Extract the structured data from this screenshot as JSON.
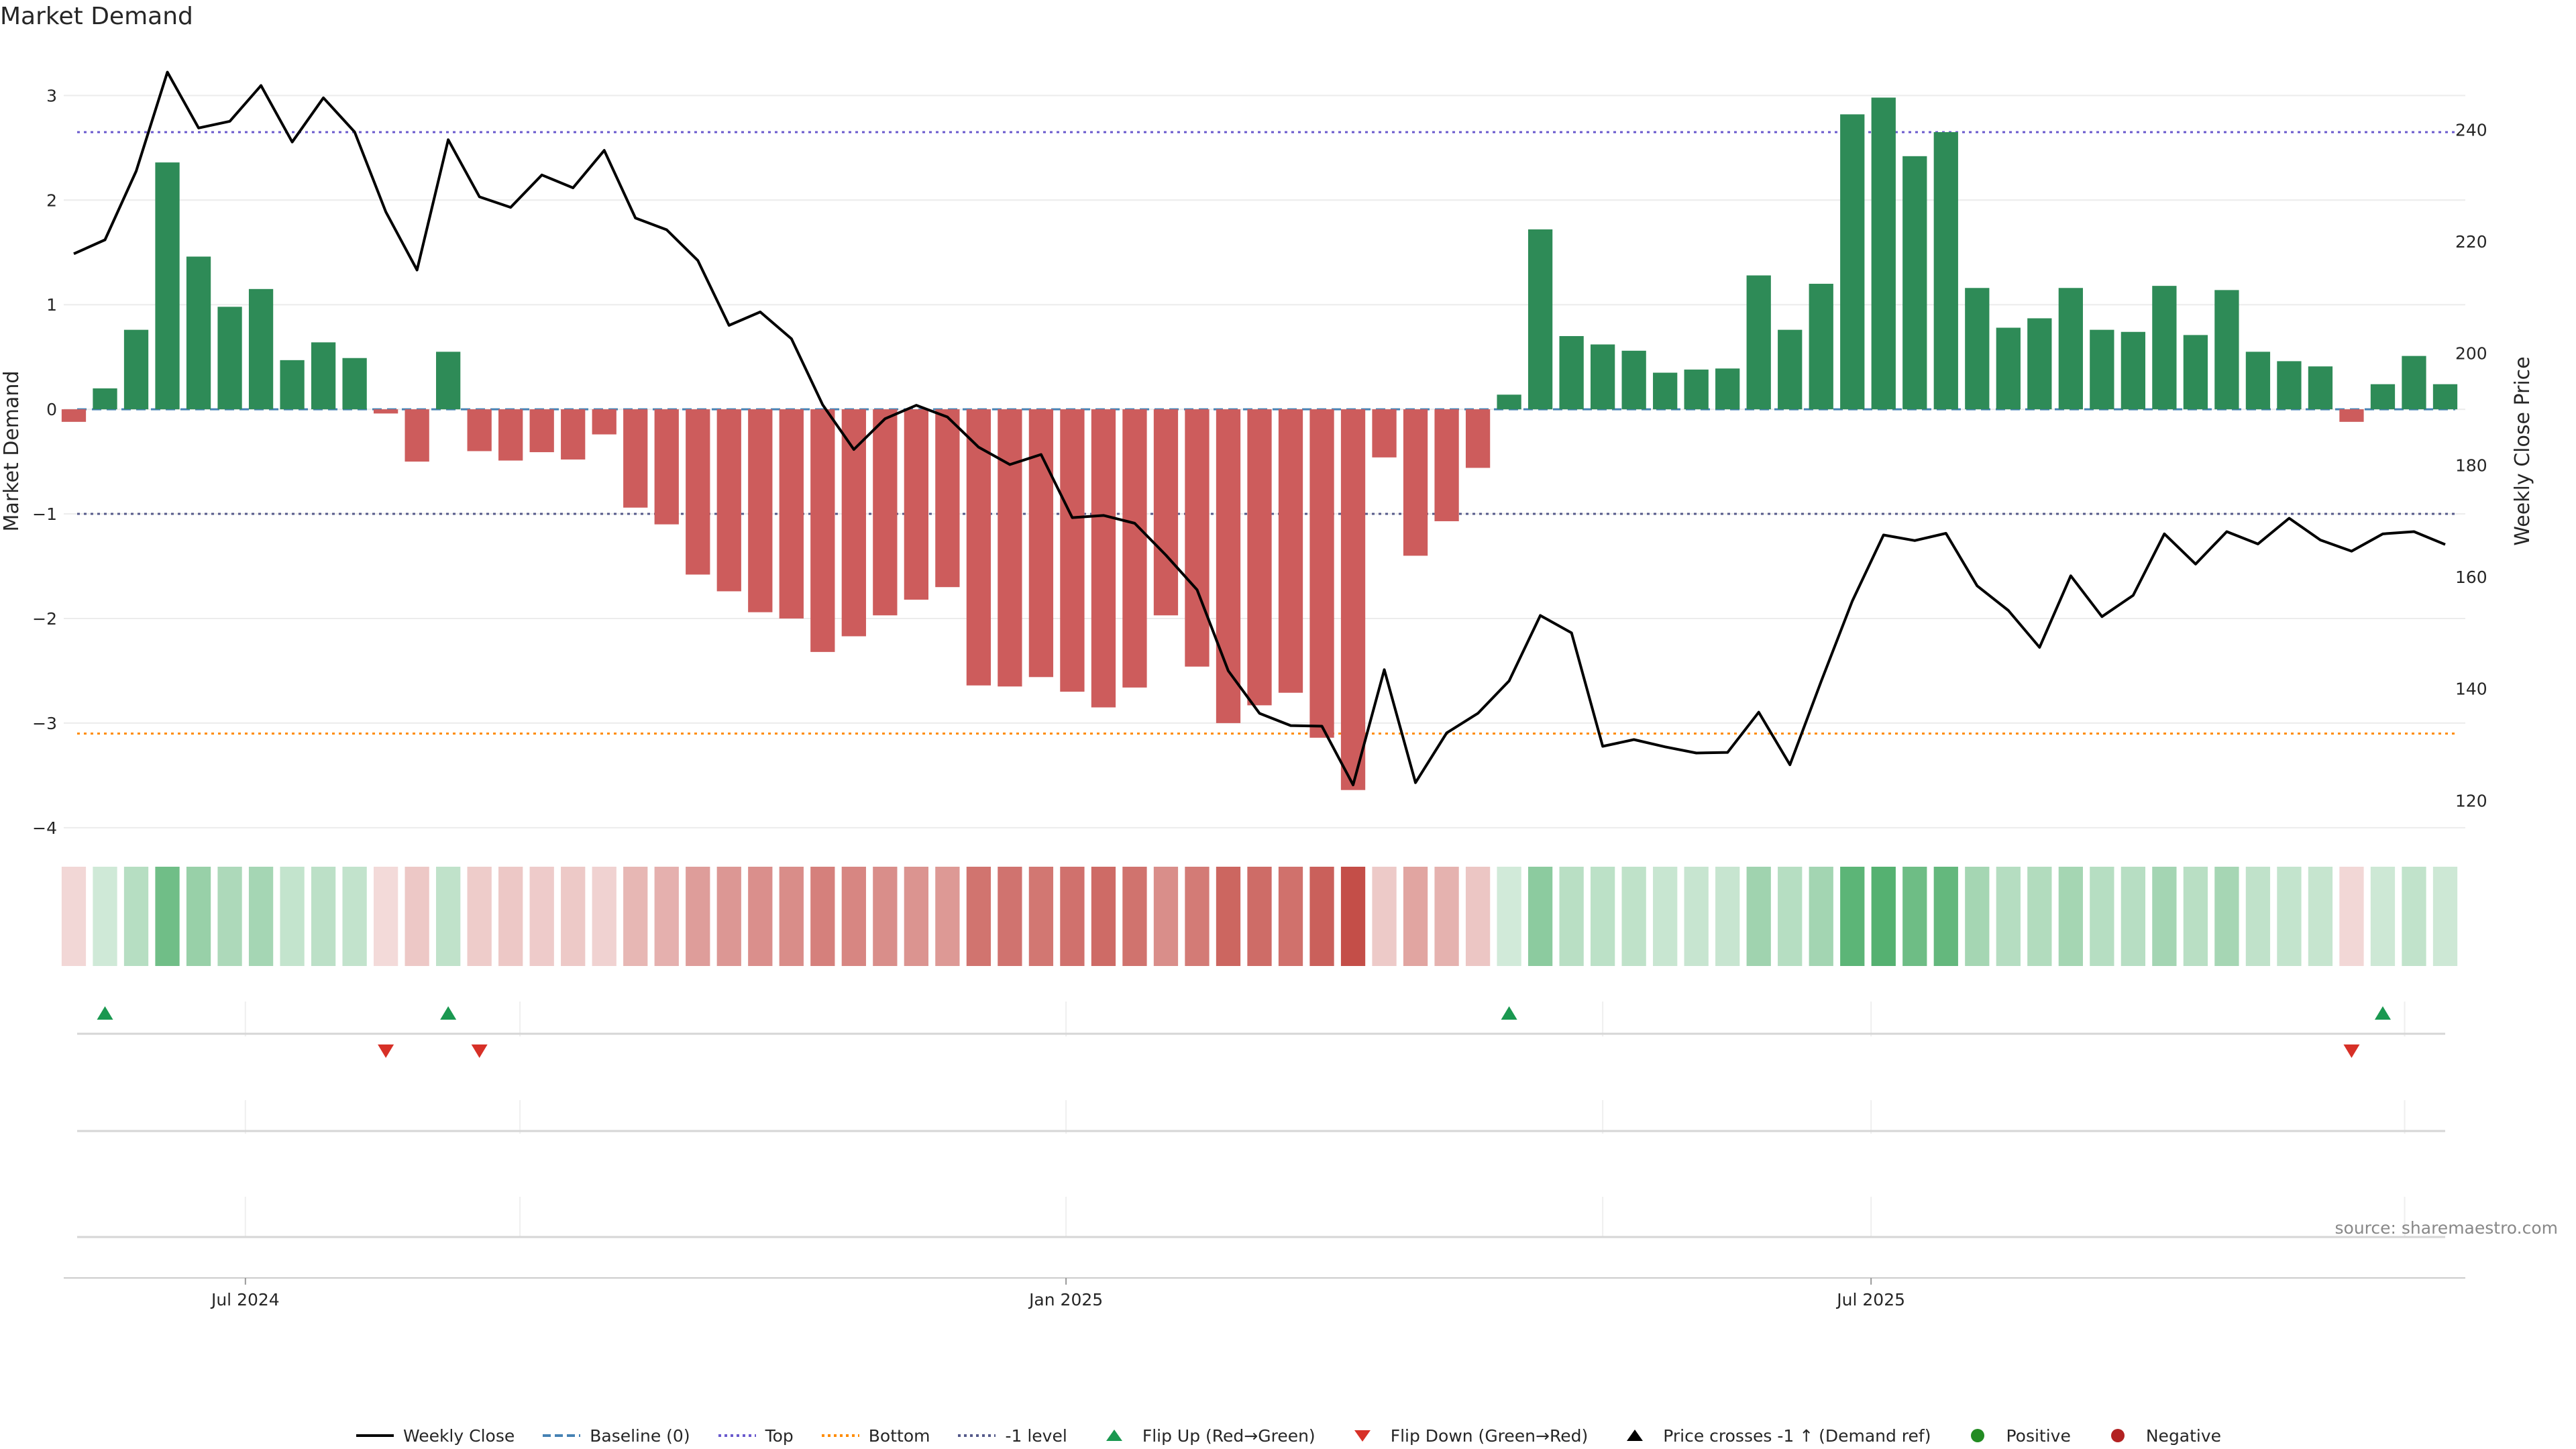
{
  "title": "Market Demand",
  "source": "source: sharemaestro.com",
  "colors": {
    "positive": "#2e8b57",
    "negative": "#cd5c5c",
    "close_line": "#000000",
    "top_line": "#6a5acd",
    "bottom_line": "#ff8c00",
    "minus1_line": "#555a8a",
    "baseline": "#4682b4",
    "flip_up": "#1a9850",
    "flip_down": "#d73027"
  },
  "legend": [
    {
      "label": "Weekly Close",
      "icon": "solid-line-icon",
      "color": "#000000"
    },
    {
      "label": "Baseline (0)",
      "icon": "dashed-line-icon",
      "color": "#4682b4"
    },
    {
      "label": "Top",
      "icon": "dotted-line-icon",
      "color": "#6a5acd"
    },
    {
      "label": "Bottom",
      "icon": "dotted-line-icon",
      "color": "#ff8c00"
    },
    {
      "label": "-1 level",
      "icon": "dotted-line-icon",
      "color": "#555a8a"
    },
    {
      "label": "Flip Up (Red→Green)",
      "icon": "triangle-up-icon",
      "color": "#1a9850"
    },
    {
      "label": "Flip Down (Green→Red)",
      "icon": "triangle-down-icon",
      "color": "#d73027"
    },
    {
      "label": "Price crosses -1 ↑ (Demand ref)",
      "icon": "triangle-up-icon",
      "color": "#000000"
    },
    {
      "label": "Positive",
      "icon": "circle-icon",
      "color": "#228b22"
    },
    {
      "label": "Negative",
      "icon": "circle-icon",
      "color": "#b22222"
    }
  ],
  "chart_data": {
    "type": "bar",
    "title": "Market Demand",
    "ylabel": "Market Demand",
    "y2label": "Weekly Close Price",
    "ylim": [
      -4.2,
      3.4
    ],
    "y2lim": [
      111.4,
      253.6
    ],
    "yticks": [
      3,
      2,
      1,
      0,
      -1,
      -2,
      -3,
      -4
    ],
    "yticklabels": [
      "3",
      "2",
      "1",
      "0",
      "−1",
      "−2",
      "−3",
      "−4"
    ],
    "y2ticks": [
      240,
      220,
      200,
      180,
      160,
      140,
      120
    ],
    "y2ticklabels": [
      "240",
      "220",
      "200",
      "180",
      "160",
      "140",
      "120"
    ],
    "x_tick_labels": [
      {
        "label": "Jul 2024",
        "week": 5.5
      },
      {
        "label": "Jan 2025",
        "week": 31.8
      },
      {
        "label": "Jul 2025",
        "week": 57.6
      }
    ],
    "reference_lines": {
      "baseline": 0,
      "top": 2.65,
      "bottom": -3.1,
      "minus1": -1.0
    },
    "demand": [
      -0.12,
      0.2,
      0.76,
      2.36,
      1.46,
      0.98,
      1.15,
      0.47,
      0.64,
      0.49,
      -0.04,
      -0.5,
      0.55,
      -0.4,
      -0.49,
      -0.41,
      -0.48,
      -0.24,
      -0.94,
      -1.1,
      -1.58,
      -1.74,
      -1.94,
      -2.0,
      -2.32,
      -2.17,
      -1.97,
      -1.82,
      -1.7,
      -2.64,
      -2.65,
      -2.56,
      -2.7,
      -2.85,
      -2.66,
      -1.97,
      -2.46,
      -3.0,
      -2.83,
      -2.71,
      -3.14,
      -3.64,
      -0.46,
      -1.4,
      -1.07,
      -0.56,
      0.14,
      1.72,
      0.7,
      0.62,
      0.56,
      0.35,
      0.38,
      0.39,
      1.28,
      0.76,
      1.2,
      2.82,
      2.98,
      2.42,
      2.65,
      1.16,
      0.78,
      0.87,
      1.16,
      0.76,
      0.74,
      1.18,
      0.71,
      1.14,
      0.55,
      0.46,
      0.41,
      -0.12,
      0.24,
      0.51,
      0.24
    ],
    "close": [
      217.8,
      220.3,
      232.6,
      250.3,
      240.3,
      241.5,
      247.9,
      237.8,
      245.7,
      239.6,
      225.3,
      214.9,
      238.2,
      228.0,
      226.1,
      231.9,
      229.6,
      236.3,
      224.2,
      222.1,
      216.6,
      205.0,
      207.4,
      202.6,
      190.8,
      182.8,
      188.3,
      190.7,
      188.6,
      183.2,
      180.1,
      181.9,
      170.6,
      171.0,
      169.6,
      163.9,
      157.7,
      143.2,
      135.6,
      133.4,
      133.3,
      122.8,
      143.4,
      123.2,
      132.1,
      135.6,
      141.4,
      153.1,
      150.0,
      129.7,
      130.9,
      129.6,
      128.5,
      128.6,
      135.8,
      126.4,
      141.3,
      155.7,
      167.5,
      166.5,
      167.8,
      158.4,
      154.0,
      147.4,
      160.2,
      152.9,
      156.7,
      167.7,
      162.3,
      168.1,
      165.9,
      170.5,
      166.6,
      164.6,
      167.7,
      168.1,
      165.8
    ],
    "flip_up_weeks": [
      1,
      12,
      46,
      74
    ],
    "flip_down_weeks": [
      10,
      13,
      73
    ]
  }
}
